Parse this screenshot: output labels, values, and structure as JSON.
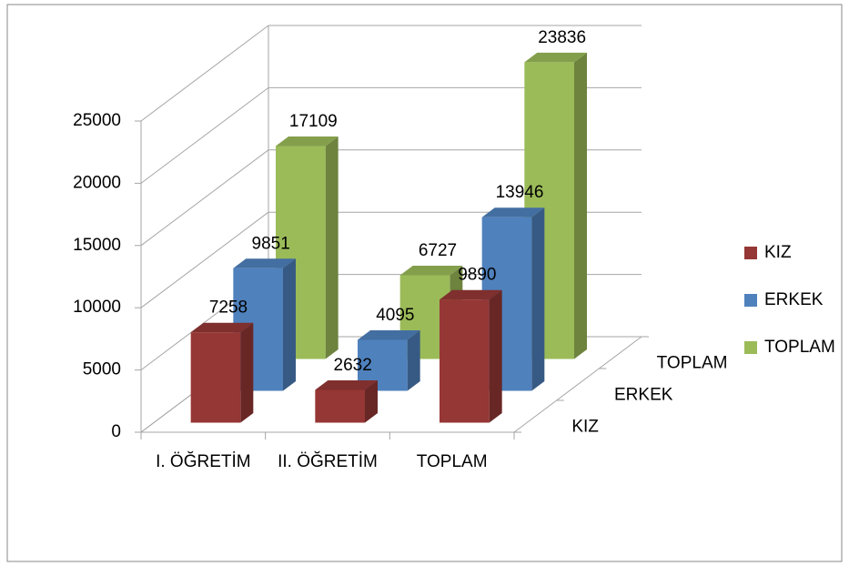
{
  "chart_data": {
    "type": "bar3d",
    "categories": [
      "I. ÖĞRETİM",
      "II. ÖĞRETİM",
      "TOPLAM"
    ],
    "series": [
      {
        "name": "KIZ",
        "color": "#953735",
        "values": [
          7258,
          2632,
          9890
        ]
      },
      {
        "name": "ERKEK",
        "color": "#4f81bd",
        "values": [
          9851,
          4095,
          13946
        ]
      },
      {
        "name": "TOPLAM",
        "color": "#9bbb59",
        "values": [
          17109,
          6727,
          23836
        ]
      }
    ],
    "ylim": [
      0,
      25000
    ],
    "yticks": [
      0,
      5000,
      10000,
      15000,
      20000,
      25000
    ],
    "grid": true,
    "legend": "right"
  }
}
